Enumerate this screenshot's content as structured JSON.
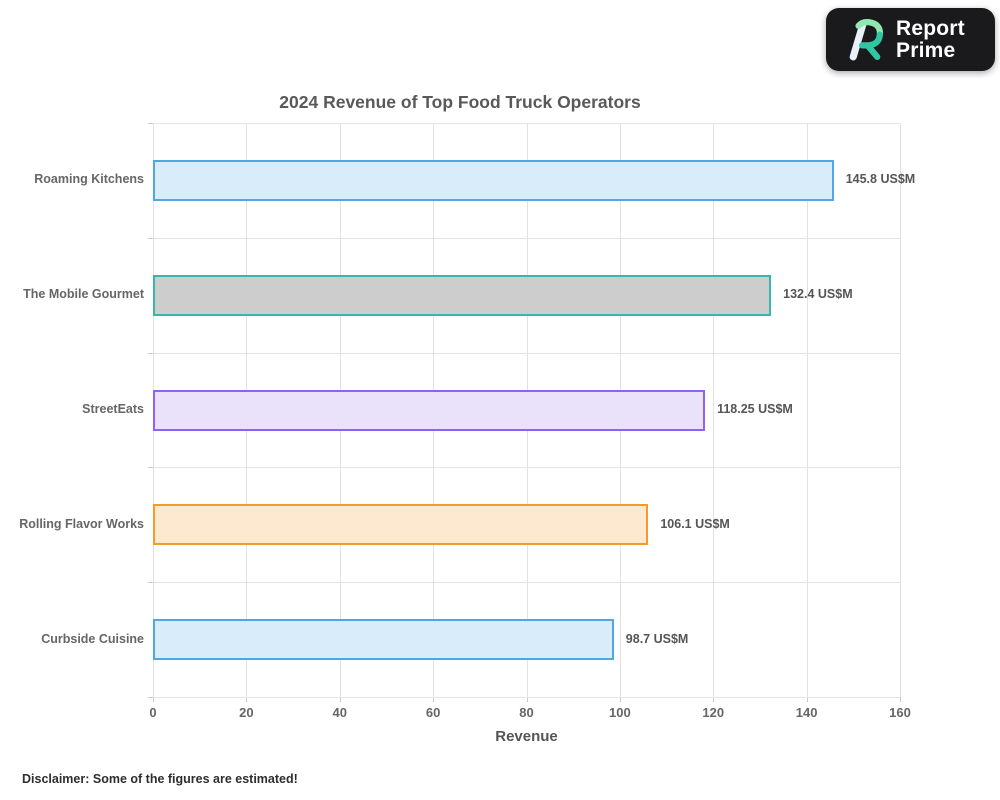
{
  "logo": {
    "line1": "Report",
    "line2": "Prime",
    "background": "#1a1a1c",
    "mark_colors": {
      "outer_ribbon": "#90E8B2",
      "inner_bowl": "#2FC6A1",
      "stem": "#E8F0FA"
    }
  },
  "chart_data": {
    "type": "bar",
    "orientation": "horizontal",
    "title": "2024 Revenue of Top Food Truck Operators",
    "xlabel": "Revenue",
    "unit": "US$M",
    "xlim": [
      0,
      160
    ],
    "xticks": [
      "0",
      "20",
      "40",
      "60",
      "80",
      "100",
      "120",
      "140",
      "160"
    ],
    "xtick_values": [
      0,
      20,
      40,
      60,
      80,
      100,
      120,
      140,
      160
    ],
    "grid": true,
    "legend": "none",
    "categories": [
      "Roaming Kitchens",
      "The Mobile Gourmet",
      "StreetEats",
      "Rolling Flavor Works",
      "Curbside Cuisine"
    ],
    "values": [
      145.8,
      132.4,
      118.25,
      106.1,
      98.7
    ],
    "value_labels": [
      "145.8 US$M",
      "132.4 US$M",
      "118.25 US$M",
      "106.1 US$M",
      "98.7 US$M"
    ],
    "bar_styles": [
      {
        "fill": "#d9ecf9",
        "border": "#4fa8e3"
      },
      {
        "fill": "#cdcdcd",
        "border": "#3ab4af"
      },
      {
        "fill": "#eae1fb",
        "border": "#8f62f2"
      },
      {
        "fill": "#fde9d0",
        "border": "#f6992f"
      },
      {
        "fill": "#d9ecf9",
        "border": "#4fa8e3"
      }
    ]
  },
  "footer": {
    "disclaimer": "Disclaimer: Some of the figures are estimated!"
  }
}
